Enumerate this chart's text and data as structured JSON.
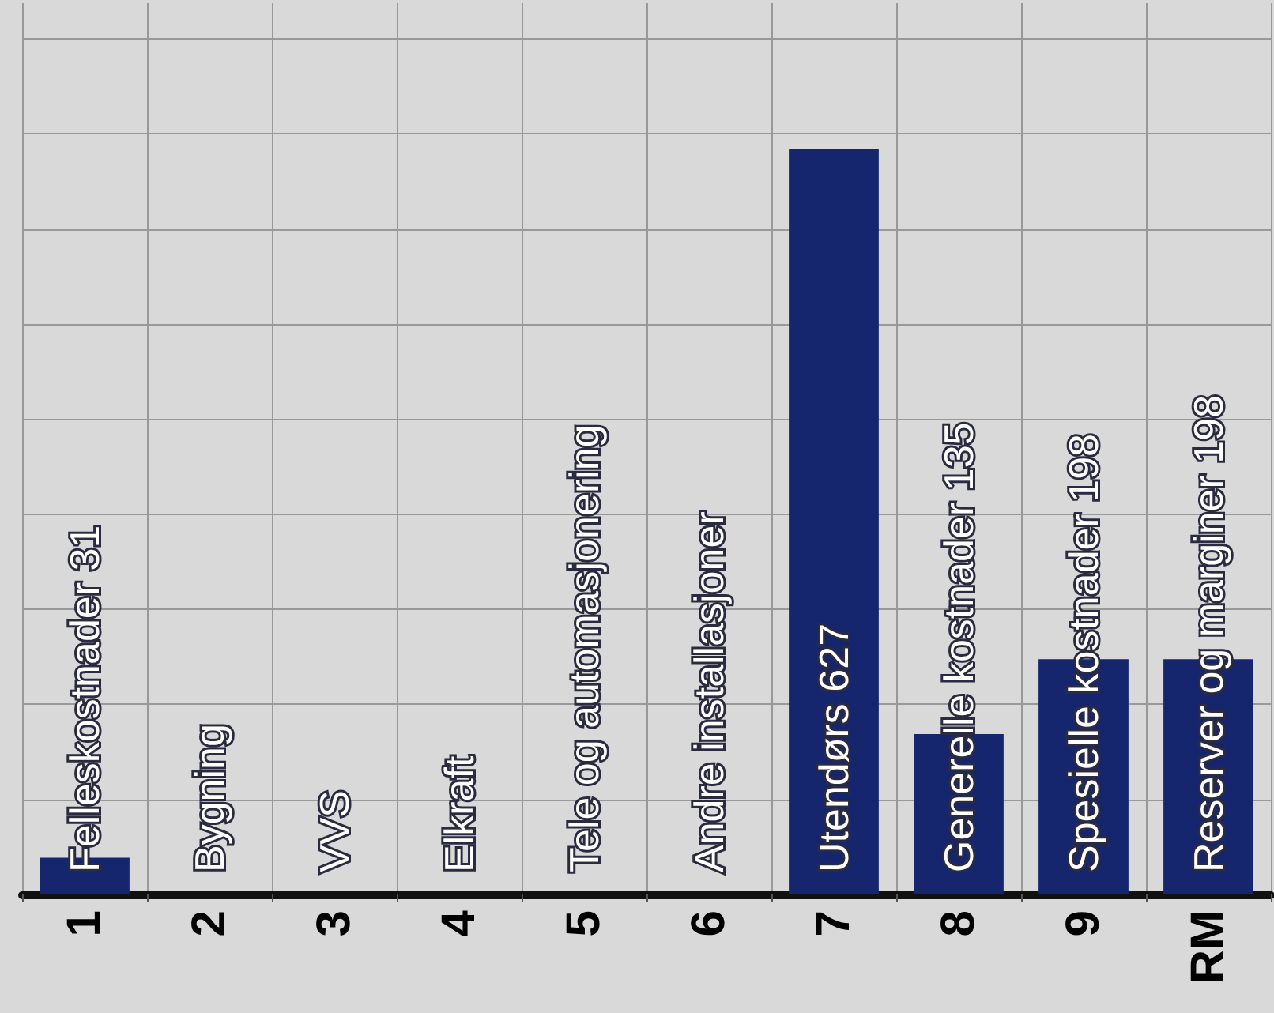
{
  "chart_data": {
    "type": "bar",
    "categories": [
      "1",
      "2",
      "3",
      "4",
      "5",
      "6",
      "7",
      "8",
      "9",
      "RM"
    ],
    "values": [
      31,
      0,
      0,
      0,
      0,
      0,
      627,
      135,
      198,
      198
    ],
    "value_labels": [
      "Felleskostnader 31",
      "Bygning",
      "VVS",
      "Elkraft",
      "Tele og automasjonering",
      "Andre installasjoner",
      "Utendørs 627",
      "Generelle kostnader 135",
      "Spesielle kostnader 198",
      "Reserver og marginer 198"
    ],
    "color": "#16266e",
    "ylim": [
      0,
      750
    ],
    "yticks": [
      {
        "value": 0,
        "label": null
      },
      {
        "value": 80,
        "label": null
      },
      {
        "value": 160,
        "label": null
      },
      {
        "value": 240,
        "label": null
      },
      {
        "value": 320,
        "label": null
      },
      {
        "value": 400,
        "label": null
      },
      {
        "value": 480,
        "label": null
      },
      {
        "value": 560,
        "label": null
      },
      {
        "value": 640,
        "label": null
      },
      {
        "value": 720,
        "label": null
      }
    ],
    "tick_labels": "x",
    "grid": true
  }
}
